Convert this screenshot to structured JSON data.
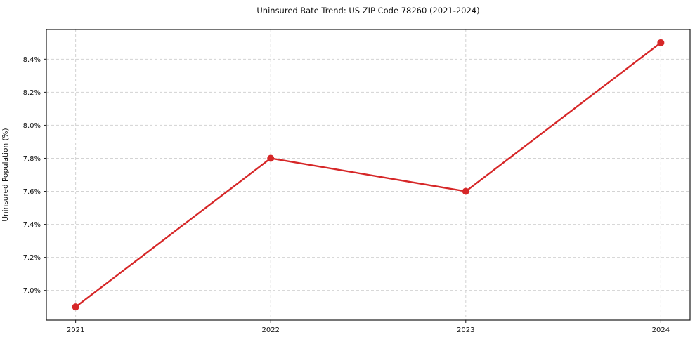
{
  "chart_data": {
    "type": "line",
    "title": "Uninsured Rate Trend: US ZIP Code 78260 (2021-2024)",
    "xlabel": "",
    "ylabel": "Uninsured Population (%)",
    "x": [
      2021,
      2022,
      2023,
      2024
    ],
    "series": [
      {
        "name": "Uninsured Rate",
        "values": [
          6.9,
          7.8,
          7.6,
          8.5
        ],
        "color": "#d62728",
        "marker": "circle"
      }
    ],
    "xticks": [
      2021,
      2022,
      2023,
      2024
    ],
    "xtick_labels": [
      "2021",
      "2022",
      "2023",
      "2024"
    ],
    "yticks": [
      7.0,
      7.2,
      7.4,
      7.6,
      7.8,
      8.0,
      8.2,
      8.4
    ],
    "ytick_labels": [
      "7.0%",
      "7.2%",
      "7.4%",
      "7.6%",
      "7.8%",
      "8.0%",
      "8.2%",
      "8.4%"
    ],
    "xlim": [
      2020.85,
      2024.15
    ],
    "ylim": [
      6.82,
      8.58
    ],
    "grid": true,
    "grid_color": "#d3d3d3",
    "frame_color": "#1a1a1a",
    "legend_position": "none"
  }
}
